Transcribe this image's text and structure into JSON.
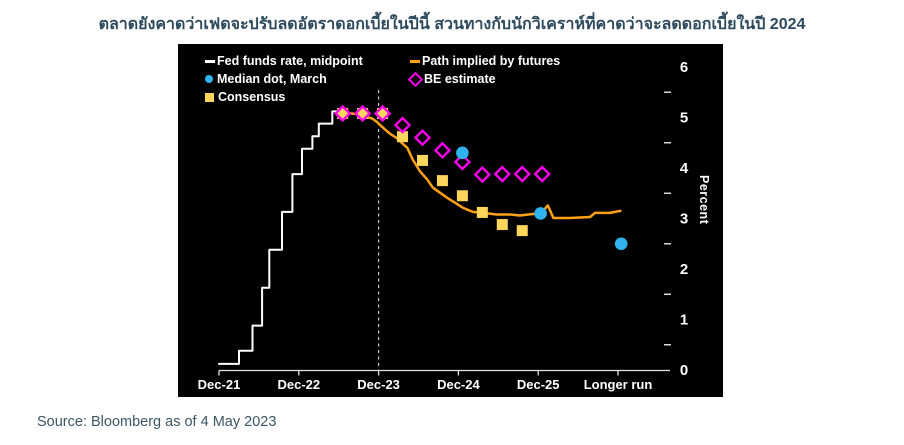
{
  "title": "ตลาดยังคาดว่าเฟดจะปรับลดอัตราดอกเบี้ยในปีนี้ สวนทางกับนักวิเคราห์ที่คาดว่าจะลดดอกเบี้ยในปี 2024",
  "source": "Source: Bloomberg as of 4 May 2023",
  "colors": {
    "fed": "#ffffff",
    "futures": "#ffa115",
    "median": "#2fb4f0",
    "be": "#ff00f0",
    "consensus": "#ffd65c",
    "axis": "#e6e6e6",
    "dashed": "#c9c9c9",
    "panel": "#000000",
    "title_text": "#2c4a5c",
    "source_text": "#3a5663"
  },
  "chart_data": {
    "type": "line",
    "x_axis": {
      "unit": "years since Dec-2021",
      "labels": [
        "Dec-21",
        "Dec-22",
        "Dec-23",
        "Dec-24",
        "Dec-25",
        "Longer run"
      ],
      "positions": [
        0,
        1,
        2,
        3,
        4,
        5
      ]
    },
    "y_axis": {
      "label": "Percent",
      "ticks": [
        0,
        1,
        2,
        3,
        4,
        5,
        6
      ],
      "minor_ticks": [
        0.5,
        1.5,
        2.5,
        3.5,
        4.5,
        5.5
      ],
      "range": [
        0,
        6.3
      ],
      "position": "right"
    },
    "today_line_t": 2.0,
    "series": [
      {
        "name": "Fed funds rate, midpoint",
        "type": "line",
        "marker": "none",
        "color_key": "fed",
        "points": [
          [
            0,
            0.12
          ],
          [
            0.25,
            0.12
          ],
          [
            0.25,
            0.38
          ],
          [
            0.42,
            0.38
          ],
          [
            0.42,
            0.88
          ],
          [
            0.54,
            0.88
          ],
          [
            0.54,
            1.63
          ],
          [
            0.63,
            1.63
          ],
          [
            0.63,
            2.38
          ],
          [
            0.79,
            2.38
          ],
          [
            0.79,
            3.13
          ],
          [
            0.92,
            3.13
          ],
          [
            0.92,
            3.88
          ],
          [
            1.04,
            3.88
          ],
          [
            1.04,
            4.38
          ],
          [
            1.17,
            4.38
          ],
          [
            1.17,
            4.63
          ],
          [
            1.25,
            4.63
          ],
          [
            1.25,
            4.88
          ],
          [
            1.42,
            4.88
          ],
          [
            1.42,
            5.12
          ],
          [
            1.54,
            5.12
          ]
        ]
      },
      {
        "name": "Path implied by futures",
        "type": "line",
        "marker": "none",
        "color_key": "futures",
        "points": [
          [
            1.54,
            5.1
          ],
          [
            1.78,
            5.06
          ],
          [
            1.85,
            5.01
          ],
          [
            1.92,
            4.98
          ],
          [
            1.98,
            4.91
          ],
          [
            2.04,
            4.82
          ],
          [
            2.11,
            4.72
          ],
          [
            2.17,
            4.65
          ],
          [
            2.23,
            4.59
          ],
          [
            2.29,
            4.5
          ],
          [
            2.36,
            4.4
          ],
          [
            2.43,
            4.16
          ],
          [
            2.52,
            3.93
          ],
          [
            2.61,
            3.77
          ],
          [
            2.68,
            3.61
          ],
          [
            2.77,
            3.51
          ],
          [
            2.86,
            3.41
          ],
          [
            2.96,
            3.31
          ],
          [
            3.06,
            3.21
          ],
          [
            3.18,
            3.13
          ],
          [
            3.31,
            3.11
          ],
          [
            3.48,
            3.08
          ],
          [
            3.65,
            3.08
          ],
          [
            3.77,
            3.06
          ],
          [
            3.93,
            3.09
          ],
          [
            4.03,
            3.09
          ],
          [
            4.12,
            3.26
          ],
          [
            4.19,
            3.01
          ],
          [
            4.4,
            3.01
          ],
          [
            4.65,
            3.03
          ],
          [
            4.71,
            3.11
          ],
          [
            4.9,
            3.11
          ],
          [
            5.03,
            3.15
          ]
        ]
      },
      {
        "name": "Median dot, March",
        "type": "scatter",
        "marker": "circle",
        "color_key": "median",
        "points": [
          [
            3.05,
            4.3
          ],
          [
            4.03,
            3.1
          ],
          [
            5.04,
            2.5
          ]
        ]
      },
      {
        "name": "BE estimate",
        "type": "scatter",
        "marker": "diamond",
        "color_key": "be",
        "points": [
          [
            1.55,
            5.08
          ],
          [
            1.8,
            5.08
          ],
          [
            2.05,
            5.08
          ],
          [
            2.3,
            4.85
          ],
          [
            2.55,
            4.6
          ],
          [
            2.8,
            4.35
          ],
          [
            3.05,
            4.12
          ],
          [
            3.3,
            3.87
          ],
          [
            3.55,
            3.88
          ],
          [
            3.8,
            3.88
          ],
          [
            4.05,
            3.88
          ]
        ]
      },
      {
        "name": "Consensus",
        "type": "scatter",
        "marker": "square",
        "color_key": "consensus",
        "points": [
          [
            1.55,
            5.08
          ],
          [
            1.8,
            5.08
          ],
          [
            2.05,
            5.08
          ],
          [
            2.3,
            4.62
          ],
          [
            2.55,
            4.15
          ],
          [
            2.8,
            3.75
          ],
          [
            3.05,
            3.45
          ],
          [
            3.3,
            3.12
          ],
          [
            3.55,
            2.88
          ],
          [
            3.8,
            2.76
          ]
        ]
      }
    ]
  }
}
